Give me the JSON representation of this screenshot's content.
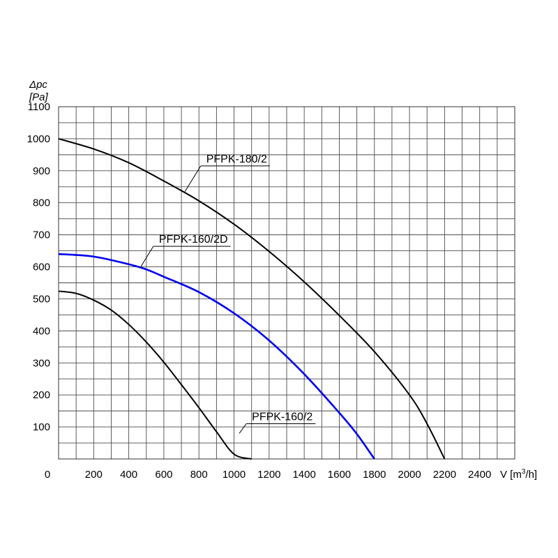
{
  "chart_data": {
    "type": "line",
    "y_axis_label_line1": "Δpc",
    "y_axis_label_line2": "[Pa]",
    "x_axis_label_prefix": "V [m",
    "x_axis_label_sup": "3",
    "x_axis_label_suffix": "/h]",
    "xlim": [
      0,
      2600
    ],
    "ylim": [
      0,
      1100
    ],
    "x_ticks": [
      0,
      200,
      400,
      600,
      800,
      1000,
      1200,
      1400,
      1600,
      1800,
      2000,
      2200,
      2400
    ],
    "y_ticks": [
      100,
      200,
      300,
      400,
      500,
      600,
      700,
      800,
      900,
      1000,
      1100
    ],
    "x_tick_labels": [
      "0",
      "200",
      "400",
      "600",
      "800",
      "1000",
      "1200",
      "1400",
      "1600",
      "1800",
      "2000",
      "2200",
      "2400"
    ],
    "y_tick_labels": [
      "100",
      "200",
      "300",
      "400",
      "500",
      "600",
      "700",
      "800",
      "900",
      "1000",
      "1100"
    ],
    "grid": true,
    "series": [
      {
        "name": "PFPK-180/2",
        "color": "#000000",
        "x": [
          0,
          200,
          400,
          600,
          800,
          1000,
          1200,
          1400,
          1600,
          1800,
          2000,
          2100,
          2200
        ],
        "y": [
          1000,
          968,
          925,
          868,
          806,
          733,
          648,
          553,
          448,
          335,
          200,
          110,
          0
        ]
      },
      {
        "name": "PFPK-160/2D",
        "color": "#0000ee",
        "x": [
          0,
          200,
          400,
          500,
          600,
          800,
          1000,
          1200,
          1400,
          1600,
          1700,
          1800
        ],
        "y": [
          640,
          632,
          608,
          592,
          569,
          521,
          455,
          370,
          265,
          144,
          78,
          0
        ]
      },
      {
        "name": "PFPK-160/2",
        "color": "#000000",
        "x": [
          0,
          100,
          200,
          300,
          400,
          500,
          600,
          700,
          800,
          900,
          1000,
          1100
        ],
        "y": [
          524,
          517,
          496,
          465,
          420,
          365,
          302,
          232,
          160,
          85,
          15,
          0
        ]
      }
    ],
    "annotations": [
      {
        "text": "PFPK-180/2",
        "series": 0,
        "x": 720,
        "y": 835,
        "label_x": 810,
        "label_y": 915
      },
      {
        "text": "PFPK-160/2D",
        "series": 1,
        "x": 465,
        "y": 597,
        "label_x": 540,
        "label_y": 664
      },
      {
        "text": "PFPK-160/2",
        "series": 2,
        "x": 1030,
        "y": 80,
        "label_x": 1070,
        "label_y": 110
      }
    ]
  }
}
